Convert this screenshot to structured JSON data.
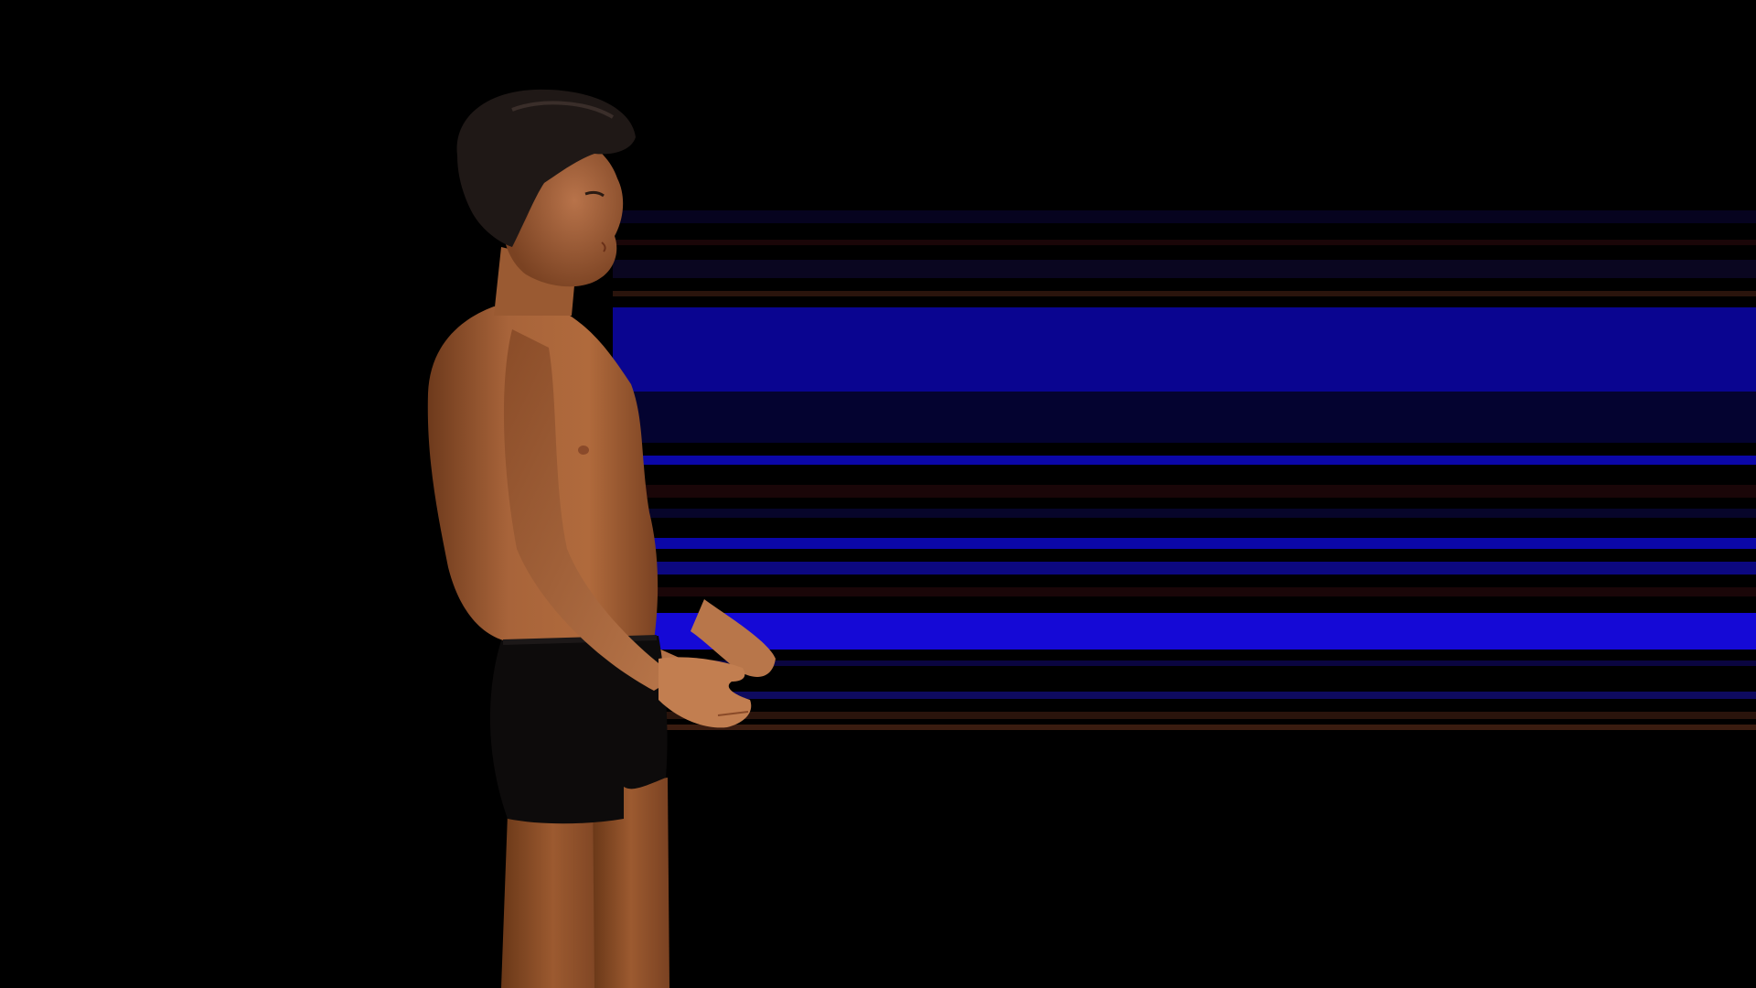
{
  "scene": {
    "background_color": "#000000",
    "band_colors": {
      "dark_navy": "#06031f",
      "deep_blue": "#0b07a8",
      "royal_blue": "#1509d6",
      "brown_red": "#2a140c",
      "maroon": "#1a0608"
    }
  },
  "character": {
    "skin_color": "#b06a3c",
    "skin_shadow_color": "#6e3a1c",
    "hair_color": "#1f1816",
    "shorts_color": "#0d0b0b"
  }
}
